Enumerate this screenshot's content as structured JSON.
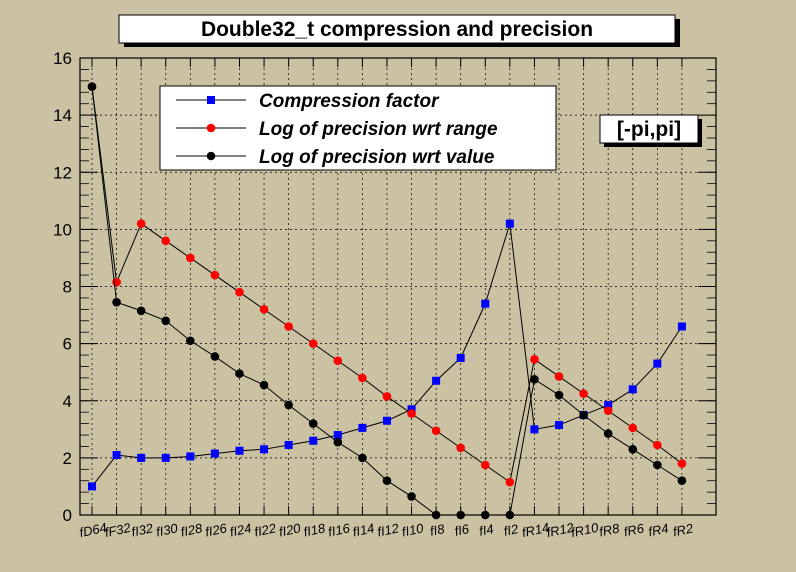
{
  "chart_data": {
    "type": "line",
    "title": "Double32_t compression and precision",
    "xlabel": "",
    "ylabel": "",
    "ylim": [
      0,
      16
    ],
    "y_ticks": [
      0,
      2,
      4,
      6,
      8,
      10,
      12,
      14,
      16
    ],
    "grid": true,
    "legend_placement": "top-left",
    "annotation": "[-pi,pi]",
    "categories": [
      "fD64",
      "fF32",
      "fI32",
      "fI30",
      "fI28",
      "fI26",
      "fI24",
      "fI22",
      "fI20",
      "fI18",
      "fI16",
      "fI14",
      "fI12",
      "fI10",
      "fI8",
      "fI6",
      "fI4",
      "fI2",
      "fR14",
      "fR12",
      "fR10",
      "fR8",
      "fR6",
      "fR4",
      "fR2"
    ],
    "series": [
      {
        "name": "Compression factor",
        "color": "#0000ff",
        "marker": "square",
        "values": [
          1.0,
          2.1,
          2.0,
          2.0,
          2.05,
          2.15,
          2.25,
          2.3,
          2.45,
          2.6,
          2.8,
          3.05,
          3.3,
          3.7,
          4.7,
          5.5,
          7.4,
          10.2,
          3.0,
          3.15,
          3.5,
          3.85,
          4.4,
          5.3,
          6.6
        ]
      },
      {
        "name": "Log of precision wrt range",
        "color": "#ff0000",
        "marker": "circle",
        "values": [
          15.0,
          8.15,
          10.2,
          9.6,
          9.0,
          8.4,
          7.8,
          7.2,
          6.6,
          6.0,
          5.4,
          4.8,
          4.15,
          3.55,
          2.95,
          2.35,
          1.75,
          1.15,
          5.45,
          4.85,
          4.25,
          3.65,
          3.05,
          2.45,
          1.8
        ]
      },
      {
        "name": "Log of precision wrt value",
        "color": "#000000",
        "marker": "circle",
        "values": [
          15.0,
          7.45,
          7.15,
          6.8,
          6.1,
          5.55,
          4.95,
          4.55,
          3.85,
          3.2,
          2.55,
          2.0,
          1.2,
          0.65,
          0.0,
          0.0,
          0.0,
          0.0,
          4.75,
          4.2,
          3.5,
          2.85,
          2.3,
          1.75,
          1.2
        ]
      }
    ]
  },
  "colors": {
    "background": "#cac2a3",
    "frame": "#000000",
    "grid": "#000000",
    "title_box": "#ffffff"
  }
}
